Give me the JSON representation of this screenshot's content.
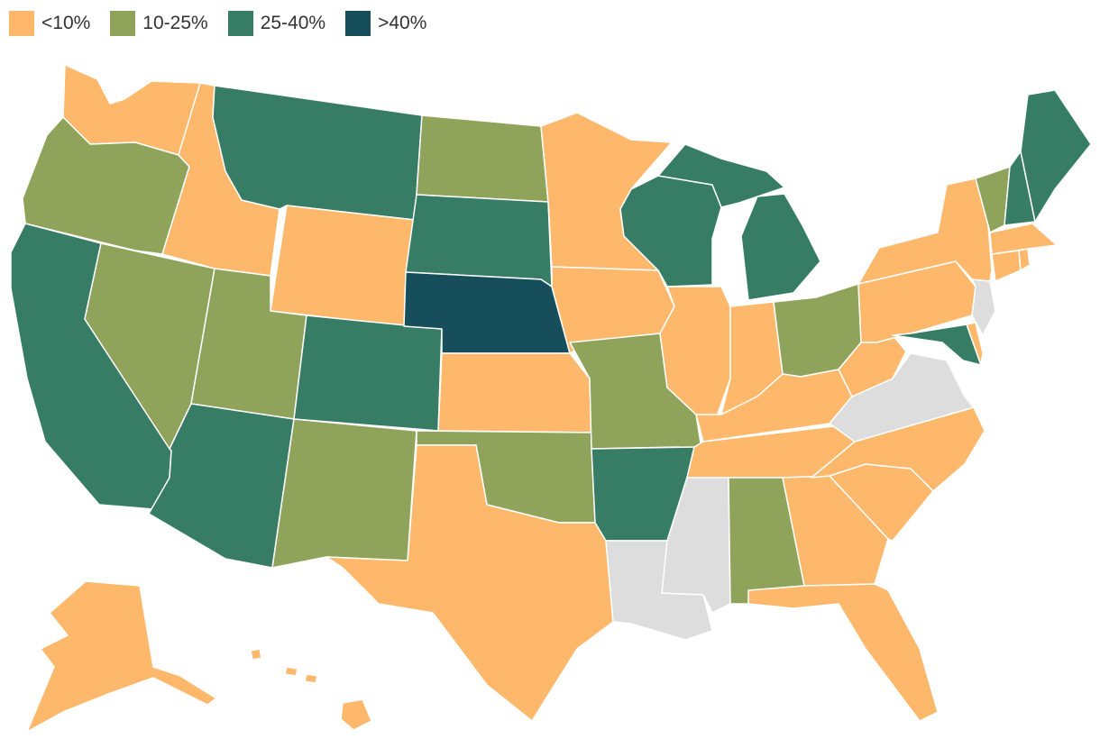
{
  "legend": [
    {
      "label": "<10%",
      "color": "#fdb86c"
    },
    {
      "label": "10-25%",
      "color": "#8fa35a"
    },
    {
      "label": "25-40%",
      "color": "#377d66"
    },
    {
      "label": ">40%",
      "color": "#164f5b"
    }
  ],
  "no_data_color": "#dddddd",
  "states": {
    "WA": "<10%",
    "OR": "10-25%",
    "CA": "25-40%",
    "ID": "<10%",
    "NV": "10-25%",
    "MT": "25-40%",
    "WY": "<10%",
    "UT": "10-25%",
    "AZ": "25-40%",
    "CO": "25-40%",
    "NM": "10-25%",
    "ND": "10-25%",
    "SD": "25-40%",
    "NE": ">40%",
    "KS": "<10%",
    "OK": "10-25%",
    "TX": "<10%",
    "MN": "<10%",
    "IA": "<10%",
    "MO": "10-25%",
    "AR": "25-40%",
    "LA": "none",
    "WI": "25-40%",
    "IL": "<10%",
    "MS": "none",
    "MI": "25-40%",
    "IN": "<10%",
    "OH": "10-25%",
    "KY": "<10%",
    "TN": "<10%",
    "AL": "10-25%",
    "GA": "<10%",
    "FL": "<10%",
    "SC": "<10%",
    "NC": "<10%",
    "VA": "none",
    "WV": "<10%",
    "MD": "25-40%",
    "DE": "<10%",
    "NJ": "none",
    "PA": "<10%",
    "NY": "<10%",
    "CT": "<10%",
    "RI": "<10%",
    "MA": "<10%",
    "VT": "10-25%",
    "NH": "25-40%",
    "ME": "25-40%",
    "AK": "<10%",
    "HI": "<10%"
  }
}
